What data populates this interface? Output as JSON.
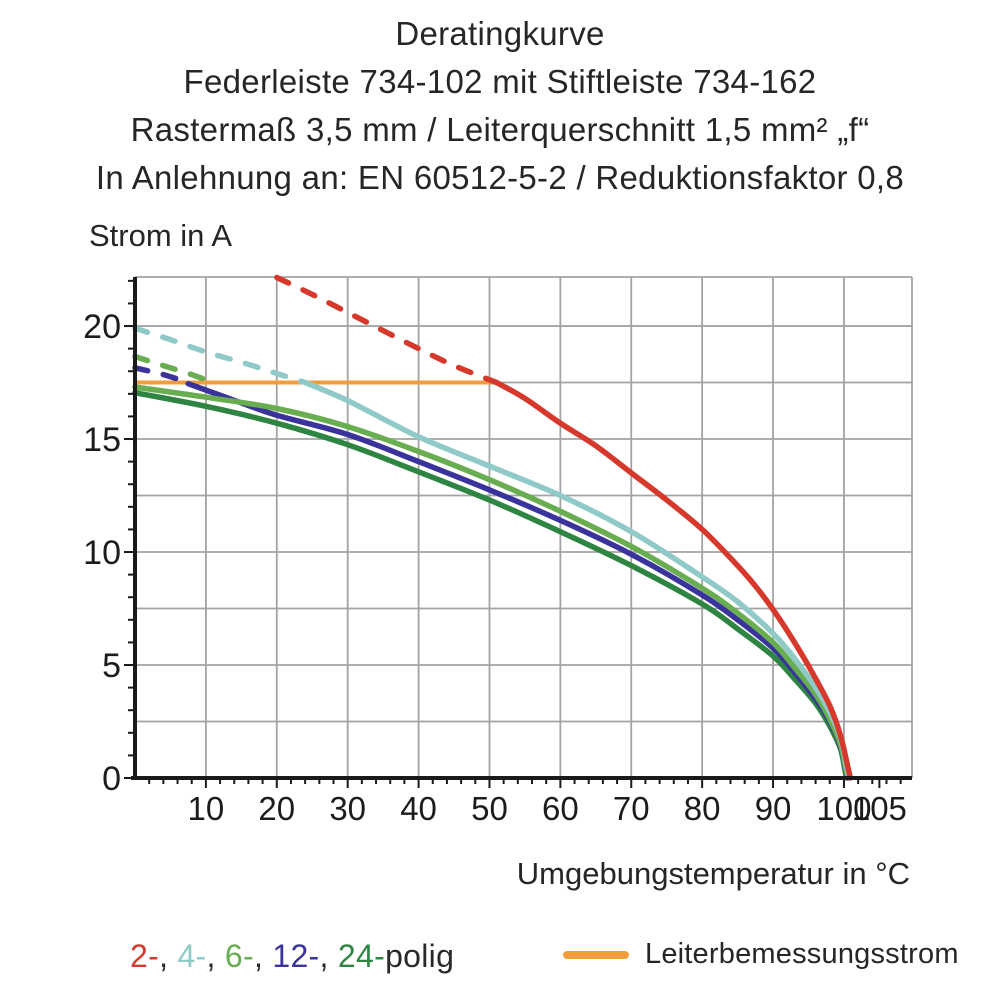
{
  "header": {
    "line1": "Deratingkurve",
    "line2": "Federleiste 734-102 mit Stiftleiste 734-162",
    "line3": "Rastermaß 3,5 mm / Leiterquerschnitt 1,5 mm² „f“",
    "line4": "In Anlehnung an: EN 60512-5-2 / Reduktionsfaktor 0,8"
  },
  "chart_data": {
    "type": "line",
    "title": "Deratingkurve",
    "ylabel": "Strom in A",
    "xlabel": "Umgebungstemperatur in °C",
    "xlim": [
      0,
      109.6
    ],
    "ylim": [
      0,
      22.17
    ],
    "x_ticks": [
      10,
      20,
      30,
      40,
      50,
      60,
      70,
      80,
      90,
      100,
      105
    ],
    "y_ticks": [
      0,
      5,
      10,
      15,
      20
    ],
    "x_minor_step": 2,
    "y_minor_step": 1,
    "grid": {
      "x_step": 10,
      "y_step": 2.5,
      "color": "#a3a3a3"
    },
    "axis_color": "#1a1a1a",
    "conductor_rated_current": 17.5,
    "series": [
      {
        "name": "Leiterbemessungsstrom",
        "color": "#f19d3b",
        "width": 4,
        "solid": [
          [
            0,
            17.5
          ],
          [
            51,
            17.5
          ]
        ]
      },
      {
        "name": "24-polig",
        "color": "#2e8542",
        "width": 5.5,
        "solid": [
          [
            0,
            17.05
          ],
          [
            10,
            16.45
          ],
          [
            20,
            15.7
          ],
          [
            30,
            14.75
          ],
          [
            40,
            13.55
          ],
          [
            50,
            12.3
          ],
          [
            60,
            10.9
          ],
          [
            70,
            9.4
          ],
          [
            80,
            7.7
          ],
          [
            85,
            6.6
          ],
          [
            90,
            5.4
          ],
          [
            93,
            4.4
          ],
          [
            96,
            3.3
          ],
          [
            98,
            2.3
          ],
          [
            99.5,
            1.3
          ],
          [
            100.1,
            0.4
          ],
          [
            100.4,
            0
          ]
        ]
      },
      {
        "name": "12-polig",
        "color": "#39339b",
        "width": 5.5,
        "dashed": [
          [
            0,
            18.15
          ],
          [
            4,
            17.85
          ],
          [
            7.5,
            17.5
          ]
        ],
        "solid": [
          [
            7.5,
            17.45
          ],
          [
            15,
            16.6
          ],
          [
            20,
            16.05
          ],
          [
            30,
            15.2
          ],
          [
            40,
            14.0
          ],
          [
            50,
            12.75
          ],
          [
            60,
            11.4
          ],
          [
            70,
            9.9
          ],
          [
            80,
            8.1
          ],
          [
            85,
            7.0
          ],
          [
            90,
            5.75
          ],
          [
            93,
            4.7
          ],
          [
            96,
            3.5
          ],
          [
            98,
            2.5
          ],
          [
            99.5,
            1.4
          ],
          [
            100.2,
            0.45
          ],
          [
            100.5,
            0
          ]
        ]
      },
      {
        "name": "6-polig",
        "color": "#68ae51",
        "width": 5.5,
        "dashed": [
          [
            0,
            18.65
          ],
          [
            4,
            18.25
          ],
          [
            8,
            17.85
          ],
          [
            11,
            17.5
          ]
        ],
        "solid": [
          [
            0,
            17.3
          ],
          [
            10,
            16.85
          ],
          [
            20,
            16.35
          ],
          [
            30,
            15.55
          ],
          [
            40,
            14.45
          ],
          [
            50,
            13.2
          ],
          [
            60,
            11.8
          ],
          [
            70,
            10.25
          ],
          [
            80,
            8.4
          ],
          [
            85,
            7.3
          ],
          [
            90,
            6.0
          ],
          [
            93,
            4.9
          ],
          [
            96,
            3.7
          ],
          [
            98,
            2.6
          ],
          [
            99.5,
            1.5
          ],
          [
            100.2,
            0.5
          ],
          [
            100.6,
            0
          ]
        ]
      },
      {
        "name": "4-polig",
        "color": "#8fc9c8",
        "width": 5.5,
        "dashed": [
          [
            0,
            19.9
          ],
          [
            5,
            19.4
          ],
          [
            10,
            18.85
          ],
          [
            15,
            18.4
          ],
          [
            20,
            17.9
          ],
          [
            24,
            17.5
          ]
        ],
        "solid": [
          [
            24,
            17.5
          ],
          [
            30,
            16.7
          ],
          [
            40,
            15.1
          ],
          [
            50,
            13.8
          ],
          [
            60,
            12.5
          ],
          [
            70,
            10.9
          ],
          [
            80,
            8.9
          ],
          [
            85,
            7.8
          ],
          [
            90,
            6.4
          ],
          [
            93,
            5.3
          ],
          [
            96,
            4.0
          ],
          [
            98,
            2.9
          ],
          [
            99.5,
            1.8
          ],
          [
            100.3,
            0.6
          ],
          [
            100.7,
            0
          ]
        ]
      },
      {
        "name": "2-polig",
        "color": "#d6392b",
        "width": 5.5,
        "dashed": [
          [
            20,
            22.15
          ],
          [
            25,
            21.4
          ],
          [
            30,
            20.6
          ],
          [
            35,
            19.8
          ],
          [
            40,
            19.0
          ],
          [
            45,
            18.25
          ],
          [
            51,
            17.5
          ]
        ],
        "solid": [
          [
            51,
            17.5
          ],
          [
            55,
            16.8
          ],
          [
            60,
            15.7
          ],
          [
            65,
            14.7
          ],
          [
            70,
            13.5
          ],
          [
            75,
            12.3
          ],
          [
            80,
            11.0
          ],
          [
            85,
            9.4
          ],
          [
            88,
            8.3
          ],
          [
            91,
            7.0
          ],
          [
            94,
            5.5
          ],
          [
            96,
            4.4
          ],
          [
            98,
            3.2
          ],
          [
            99.5,
            1.9
          ],
          [
            100.4,
            0.7
          ],
          [
            100.9,
            0
          ]
        ]
      }
    ]
  },
  "legend": {
    "poles": [
      {
        "label": "2",
        "color": "#d6392b"
      },
      {
        "label": "4",
        "color": "#8fc9c8"
      },
      {
        "label": "6",
        "color": "#68ae51"
      },
      {
        "label": "12",
        "color": "#39339b"
      },
      {
        "label": "24",
        "color": "#2e8542"
      }
    ],
    "separator": ", ",
    "poles_suffix": "polig",
    "conductor_label": "Leiterbemessungsstrom",
    "conductor_color": "#f19d3b"
  }
}
